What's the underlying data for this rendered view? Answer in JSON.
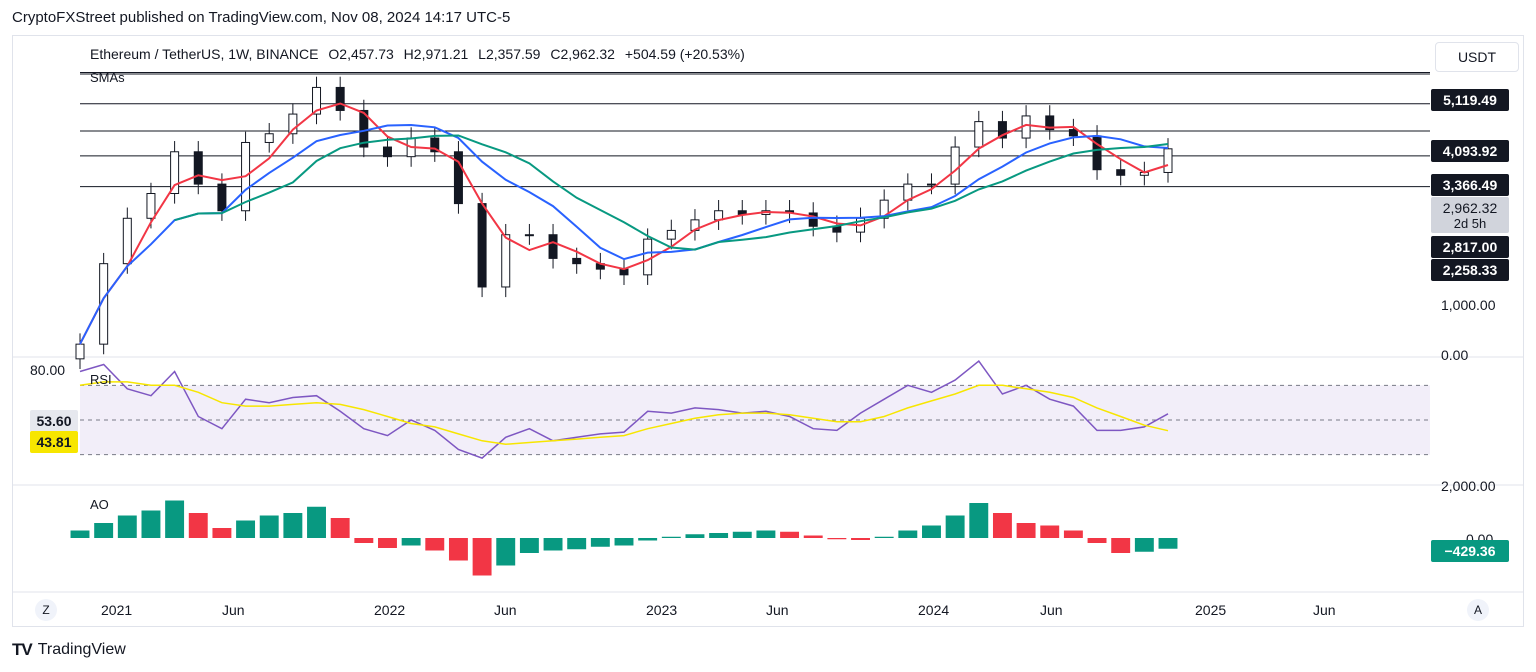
{
  "publisher": "CryptoFXStreet published on TradingView.com, Nov 08, 2024 14:17 UTC-5",
  "header": {
    "symbol": "Ethereum / TetherUS, 1W, BINANCE",
    "open": "O2,457.73",
    "high": "H2,971.21",
    "low": "L2,357.59",
    "close": "C2,962.32",
    "change": "+504.59 (+20.53%)"
  },
  "currency": "USDT",
  "indicators": {
    "smas": "SMAs",
    "rsi": "RSI",
    "ao": "AO"
  },
  "price_tags": {
    "level_5119": "5,119.49",
    "level_4093": "4,093.92",
    "level_3366": "3,366.49",
    "current_price": "2,962.32",
    "countdown": "2d 5h",
    "level_2817": "2,817.00",
    "level_2258": "2,258.33"
  },
  "price_axis": {
    "tick_1000": "1,000.00",
    "tick_0": "0.00"
  },
  "rsi_axis": {
    "tick_80": "80.00",
    "rsi_value": "53.60",
    "rsi_ma_value": "43.81"
  },
  "ao_axis": {
    "tick_2000": "2,000.00",
    "tick_0": "0.00",
    "ao_value": "−429.36"
  },
  "time_axis": [
    "2021",
    "Jun",
    "2022",
    "Jun",
    "2023",
    "Jun",
    "2024",
    "Jun",
    "2025",
    "Jun"
  ],
  "buttons": {
    "zoom": "Z",
    "auto": "A"
  },
  "logo_text": "TradingView",
  "colors": {
    "sma_red": "#f23645",
    "sma_blue": "#2962ff",
    "sma_green": "#089981",
    "rsi_line": "#7e57c2",
    "rsi_ma": "#f7e600",
    "bull": "#089981",
    "bear": "#f23645"
  },
  "chart_data": [
    {
      "type": "line",
      "title": "Ethereum / TetherUS, 1W, BINANCE",
      "ylabel": "USDT",
      "x": [
        "2021-01",
        "2021-02",
        "2021-03",
        "2021-04",
        "2021-05",
        "2021-06",
        "2021-07",
        "2021-08",
        "2021-09",
        "2021-10",
        "2021-11",
        "2021-12",
        "2022-01",
        "2022-02",
        "2022-03",
        "2022-04",
        "2022-05",
        "2022-06",
        "2022-07",
        "2022-08",
        "2022-09",
        "2022-10",
        "2022-11",
        "2022-12",
        "2023-01",
        "2023-02",
        "2023-03",
        "2023-04",
        "2023-05",
        "2023-06",
        "2023-07",
        "2023-08",
        "2023-09",
        "2023-10",
        "2023-11",
        "2023-12",
        "2024-01",
        "2024-02",
        "2024-03",
        "2024-04",
        "2024-05",
        "2024-06",
        "2024-07",
        "2024-08",
        "2024-09",
        "2024-10",
        "2024-11"
      ],
      "series": [
        {
          "values": [
            730,
            1300,
            1800,
            2150,
            2900,
            2300,
            1900,
            3100,
            3300,
            3800,
            4600,
            3900,
            3000,
            2800,
            3200,
            2900,
            2000,
            1100,
            1600,
            1600,
            1350,
            1300,
            1250,
            1200,
            1550,
            1650,
            1780,
            1900,
            1850,
            1900,
            1870,
            1700,
            1630,
            1800,
            2050,
            2300,
            2300,
            3000,
            3600,
            3200,
            3750,
            3400,
            3250,
            2550,
            2450,
            2500,
            2962.32
          ]
        }
      ],
      "price_levels": [
        5119.49,
        4093.92,
        3366.49,
        2817.0,
        2258.33
      ],
      "current": {
        "open": 2457.73,
        "high": 2971.21,
        "low": 2357.59,
        "close": 2962.32
      }
    },
    {
      "type": "line",
      "title": "RSI",
      "ylim": [
        20,
        80
      ],
      "bands": [
        30,
        70
      ],
      "series": [
        {
          "values": [
            78,
            82,
            68,
            64,
            78,
            52,
            45,
            62,
            60,
            63,
            64,
            55,
            45,
            41,
            50,
            44,
            33,
            28,
            40,
            45,
            38,
            40,
            42,
            43,
            55,
            54,
            57,
            56,
            54,
            55,
            52,
            45,
            44,
            54,
            62,
            70,
            66,
            73,
            85,
            65,
            70,
            62,
            58,
            44,
            44,
            46,
            53.6
          ]
        },
        {
          "values": [
            70,
            72,
            72,
            70,
            70,
            66,
            60,
            58,
            58,
            59,
            60,
            59,
            56,
            52,
            48,
            46,
            42,
            38,
            36,
            37,
            38,
            39,
            40,
            41,
            45,
            48,
            51,
            53,
            54,
            54,
            53,
            51,
            49,
            49,
            52,
            57,
            61,
            65,
            70,
            70,
            68,
            66,
            63,
            57,
            52,
            47,
            43.81
          ]
        }
      ]
    },
    {
      "type": "bar",
      "title": "AO",
      "values": [
        300,
        600,
        900,
        1100,
        1500,
        1000,
        400,
        700,
        900,
        1000,
        1250,
        800,
        -200,
        -400,
        -300,
        -500,
        -900,
        -1500,
        -1100,
        -600,
        -500,
        -450,
        -350,
        -300,
        -100,
        50,
        150,
        200,
        250,
        300,
        250,
        100,
        -50,
        -80,
        50,
        300,
        500,
        900,
        1400,
        1000,
        600,
        500,
        300,
        -200,
        -600,
        -550,
        -429.36
      ]
    }
  ]
}
